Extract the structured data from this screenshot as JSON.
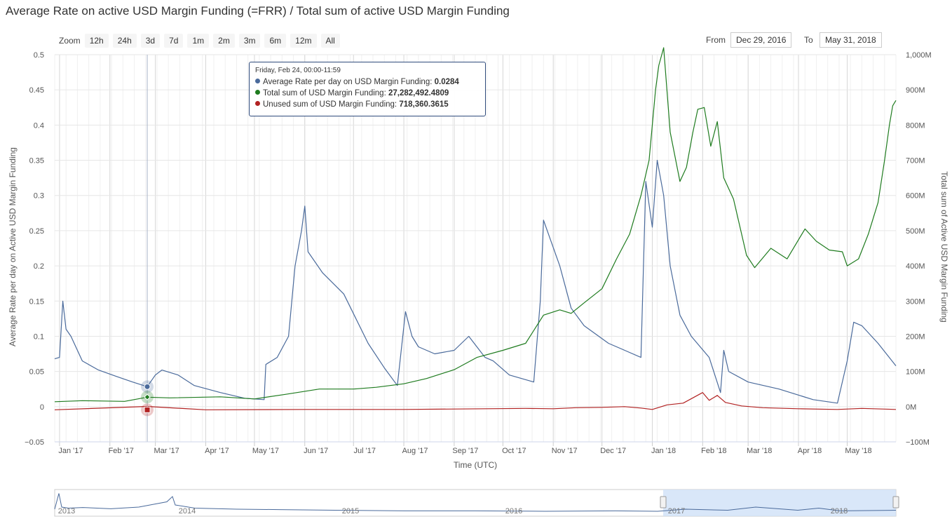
{
  "title": "Average Rate on active USD Margin Funding (=FRR) / Total sum of active USD Margin Funding",
  "zoom": {
    "label": "Zoom",
    "buttons": [
      "12h",
      "24h",
      "3d",
      "7d",
      "1m",
      "2m",
      "3m",
      "6m",
      "12m",
      "All"
    ]
  },
  "range": {
    "from_label": "From",
    "from_value": "Dec 29, 2016",
    "to_label": "To",
    "to_value": "May 31, 2018"
  },
  "tooltip": {
    "header": "Friday, Feb 24, 00:00-11:59",
    "rows": [
      {
        "label": "Average Rate per day on USD Margin Funding: ",
        "value": "0.0284",
        "color": "#4a6a9b"
      },
      {
        "label": "Total sum of USD Margin Funding: ",
        "value": "27,282,492.4809",
        "color": "#1e7b1e"
      },
      {
        "label": "Unused sum of USD Margin Funding: ",
        "value": "718,360.3615",
        "color": "#b22222"
      }
    ]
  },
  "navigator": {
    "year_labels": [
      "2013",
      "2014",
      "2015",
      "2016",
      "2017",
      "2018"
    ]
  },
  "chart_data": {
    "type": "line",
    "xlabel": "Time (UTC)",
    "ylabel_left": "Average Rate per day on Active USD Margin Funding",
    "ylabel_right": "Total sum of Active USD Margin Funding",
    "x_range": [
      "2016-12-29",
      "2018-05-31"
    ],
    "x_ticks": [
      "Jan '17",
      "Feb '17",
      "Mar '17",
      "Apr '17",
      "May '17",
      "Jun '17",
      "Jul '17",
      "Aug '17",
      "Sep '17",
      "Oct '17",
      "Nov '17",
      "Dec '17",
      "Jan '18",
      "Feb '18",
      "Mar '18",
      "Apr '18",
      "May '18"
    ],
    "y_left": {
      "min": -0.05,
      "max": 0.5,
      "ticks": [
        "−0.05",
        "0",
        "0.05",
        "0.1",
        "0.15",
        "0.2",
        "0.25",
        "0.3",
        "0.35",
        "0.4",
        "0.45",
        "0.5"
      ]
    },
    "y_right": {
      "min": -100,
      "max": 1000,
      "unit": "M",
      "ticks": [
        "−100M",
        "0M",
        "100M",
        "200M",
        "300M",
        "400M",
        "500M",
        "600M",
        "700M",
        "800M",
        "900M",
        "1,000M"
      ]
    },
    "series": [
      {
        "name": "Average Rate per day on USD Margin Funding",
        "axis": "left",
        "color": "#4a6a9b",
        "points": [
          [
            "2016-12-29",
            0.068
          ],
          [
            "2017-01-01",
            0.07
          ],
          [
            "2017-01-03",
            0.15
          ],
          [
            "2017-01-05",
            0.11
          ],
          [
            "2017-01-08",
            0.1
          ],
          [
            "2017-01-15",
            0.065
          ],
          [
            "2017-01-25",
            0.052
          ],
          [
            "2017-02-05",
            0.043
          ],
          [
            "2017-02-15",
            0.035
          ],
          [
            "2017-02-24",
            0.0284
          ],
          [
            "2017-03-01",
            0.045
          ],
          [
            "2017-03-05",
            0.052
          ],
          [
            "2017-03-15",
            0.045
          ],
          [
            "2017-03-25",
            0.03
          ],
          [
            "2017-04-10",
            0.02
          ],
          [
            "2017-04-25",
            0.012
          ],
          [
            "2017-05-07",
            0.01
          ],
          [
            "2017-05-08",
            0.06
          ],
          [
            "2017-05-15",
            0.07
          ],
          [
            "2017-05-22",
            0.1
          ],
          [
            "2017-05-26",
            0.2
          ],
          [
            "2017-05-30",
            0.25
          ],
          [
            "2017-06-01",
            0.285
          ],
          [
            "2017-06-03",
            0.22
          ],
          [
            "2017-06-12",
            0.19
          ],
          [
            "2017-06-25",
            0.16
          ],
          [
            "2017-07-10",
            0.09
          ],
          [
            "2017-07-20",
            0.055
          ],
          [
            "2017-07-28",
            0.03
          ],
          [
            "2017-08-02",
            0.135
          ],
          [
            "2017-08-06",
            0.1
          ],
          [
            "2017-08-10",
            0.085
          ],
          [
            "2017-08-20",
            0.075
          ],
          [
            "2017-09-01",
            0.08
          ],
          [
            "2017-09-10",
            0.1
          ],
          [
            "2017-09-20",
            0.07
          ],
          [
            "2017-09-25",
            0.065
          ],
          [
            "2017-10-05",
            0.045
          ],
          [
            "2017-10-20",
            0.035
          ],
          [
            "2017-10-24",
            0.15
          ],
          [
            "2017-10-26",
            0.265
          ],
          [
            "2017-11-05",
            0.2
          ],
          [
            "2017-11-12",
            0.14
          ],
          [
            "2017-11-20",
            0.115
          ],
          [
            "2017-12-05",
            0.09
          ],
          [
            "2017-12-15",
            0.08
          ],
          [
            "2017-12-25",
            0.07
          ],
          [
            "2017-12-28",
            0.32
          ],
          [
            "2018-01-01",
            0.255
          ],
          [
            "2018-01-04",
            0.35
          ],
          [
            "2018-01-08",
            0.3
          ],
          [
            "2018-01-12",
            0.2
          ],
          [
            "2018-01-18",
            0.13
          ],
          [
            "2018-01-25",
            0.1
          ],
          [
            "2018-02-05",
            0.07
          ],
          [
            "2018-02-12",
            0.02
          ],
          [
            "2018-02-14",
            0.08
          ],
          [
            "2018-02-17",
            0.05
          ],
          [
            "2018-03-01",
            0.035
          ],
          [
            "2018-03-20",
            0.025
          ],
          [
            "2018-04-10",
            0.01
          ],
          [
            "2018-04-25",
            0.005
          ],
          [
            "2018-05-01",
            0.065
          ],
          [
            "2018-05-05",
            0.12
          ],
          [
            "2018-05-10",
            0.115
          ],
          [
            "2018-05-20",
            0.09
          ],
          [
            "2018-05-31",
            0.058
          ]
        ]
      },
      {
        "name": "Total sum of USD Margin Funding",
        "axis": "right",
        "color": "#1e7b1e",
        "points": [
          [
            "2016-12-29",
            14
          ],
          [
            "2017-01-15",
            17
          ],
          [
            "2017-02-10",
            15
          ],
          [
            "2017-02-24",
            27
          ],
          [
            "2017-03-10",
            25
          ],
          [
            "2017-04-10",
            28
          ],
          [
            "2017-05-01",
            22
          ],
          [
            "2017-05-20",
            35
          ],
          [
            "2017-06-10",
            50
          ],
          [
            "2017-07-01",
            50
          ],
          [
            "2017-07-15",
            55
          ],
          [
            "2017-08-01",
            65
          ],
          [
            "2017-08-15",
            80
          ],
          [
            "2017-09-01",
            105
          ],
          [
            "2017-09-15",
            140
          ],
          [
            "2017-10-01",
            160
          ],
          [
            "2017-10-15",
            180
          ],
          [
            "2017-10-26",
            260
          ],
          [
            "2017-11-05",
            275
          ],
          [
            "2017-11-12",
            265
          ],
          [
            "2017-11-20",
            295
          ],
          [
            "2017-12-01",
            335
          ],
          [
            "2017-12-10",
            420
          ],
          [
            "2017-12-18",
            490
          ],
          [
            "2017-12-25",
            600
          ],
          [
            "2017-12-30",
            700
          ],
          [
            "2018-01-03",
            900
          ],
          [
            "2018-01-05",
            970
          ],
          [
            "2018-01-08",
            1020
          ],
          [
            "2018-01-12",
            780
          ],
          [
            "2018-01-18",
            640
          ],
          [
            "2018-01-22",
            680
          ],
          [
            "2018-01-26",
            780
          ],
          [
            "2018-01-29",
            845
          ],
          [
            "2018-02-02",
            850
          ],
          [
            "2018-02-06",
            740
          ],
          [
            "2018-02-10",
            810
          ],
          [
            "2018-02-14",
            650
          ],
          [
            "2018-02-20",
            590
          ],
          [
            "2018-02-28",
            430
          ],
          [
            "2018-03-05",
            395
          ],
          [
            "2018-03-15",
            450
          ],
          [
            "2018-03-25",
            420
          ],
          [
            "2018-04-05",
            505
          ],
          [
            "2018-04-12",
            470
          ],
          [
            "2018-04-20",
            445
          ],
          [
            "2018-04-28",
            440
          ],
          [
            "2018-05-01",
            400
          ],
          [
            "2018-05-08",
            420
          ],
          [
            "2018-05-14",
            490
          ],
          [
            "2018-05-20",
            580
          ],
          [
            "2018-05-24",
            700
          ],
          [
            "2018-05-27",
            800
          ],
          [
            "2018-05-29",
            855
          ],
          [
            "2018-05-31",
            870
          ]
        ]
      },
      {
        "name": "Unused sum of USD Margin Funding",
        "axis": "right",
        "color": "#b22222",
        "points": [
          [
            "2016-12-29",
            -9
          ],
          [
            "2017-02-24",
            0.718
          ],
          [
            "2017-04-01",
            -9
          ],
          [
            "2017-06-01",
            -8
          ],
          [
            "2017-08-01",
            -8
          ],
          [
            "2017-10-15",
            -5
          ],
          [
            "2017-11-01",
            -6
          ],
          [
            "2017-11-15",
            -3
          ],
          [
            "2017-12-01",
            -2
          ],
          [
            "2017-12-15",
            0
          ],
          [
            "2017-12-25",
            -4
          ],
          [
            "2018-01-01",
            -8
          ],
          [
            "2018-01-10",
            5
          ],
          [
            "2018-01-20",
            10
          ],
          [
            "2018-02-01",
            40
          ],
          [
            "2018-02-05",
            18
          ],
          [
            "2018-02-10",
            32
          ],
          [
            "2018-02-15",
            12
          ],
          [
            "2018-02-25",
            2
          ],
          [
            "2018-03-10",
            -3
          ],
          [
            "2018-04-01",
            -6
          ],
          [
            "2018-04-25",
            -8
          ],
          [
            "2018-05-10",
            -5
          ],
          [
            "2018-05-31",
            -8
          ]
        ]
      }
    ]
  }
}
